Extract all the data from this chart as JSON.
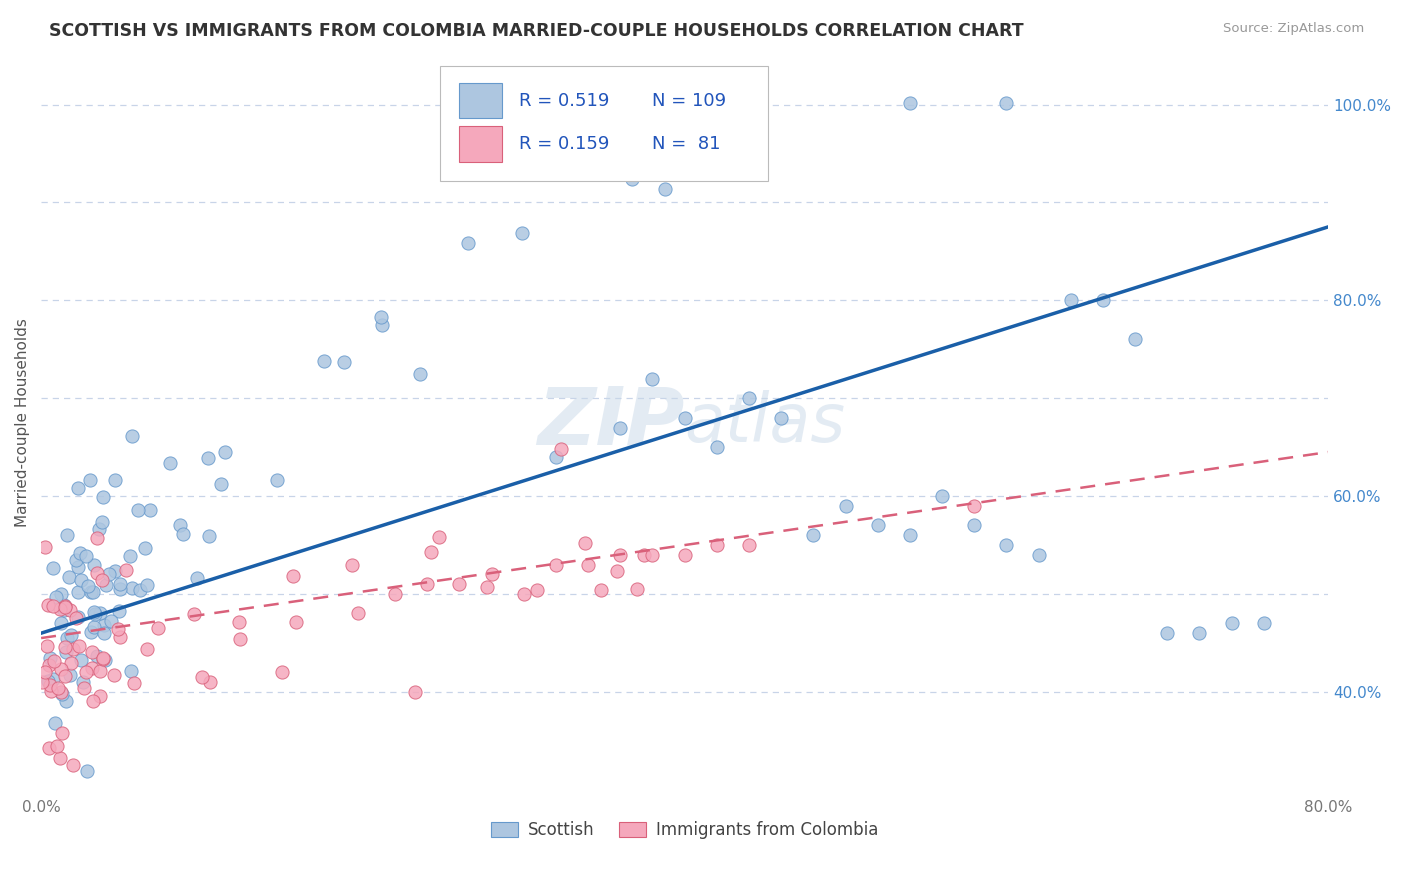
{
  "title": "SCOTTISH VS IMMIGRANTS FROM COLOMBIA MARRIED-COUPLE HOUSEHOLDS CORRELATION CHART",
  "source": "Source: ZipAtlas.com",
  "ylabel": "Married-couple Households",
  "x_min": 0.0,
  "x_max": 0.8,
  "y_min": 0.295,
  "y_max": 1.055,
  "x_ticks": [
    0.0,
    0.1,
    0.2,
    0.3,
    0.4,
    0.5,
    0.6,
    0.7,
    0.8
  ],
  "x_tick_labels": [
    "0.0%",
    "",
    "",
    "",
    "",
    "",
    "",
    "",
    "80.0%"
  ],
  "y_right_positions": [
    0.4,
    0.5,
    0.6,
    0.7,
    0.8,
    0.9,
    1.0
  ],
  "y_right_labels": [
    "40.0%",
    "",
    "60.0%",
    "",
    "80.0%",
    "",
    "100.0%"
  ],
  "legend_labels": [
    "Scottish",
    "Immigrants from Colombia"
  ],
  "blue_R": 0.519,
  "blue_N": 109,
  "pink_R": 0.159,
  "pink_N": 81,
  "blue_color": "#adc6e0",
  "pink_color": "#f5a8bc",
  "blue_edge_color": "#6699cc",
  "pink_edge_color": "#d9607a",
  "blue_line_color": "#1a5fa8",
  "pink_line_color": "#d9607a",
  "grid_color": "#c8d4e8",
  "background_color": "#ffffff",
  "blue_line_y0": 0.46,
  "blue_line_y1": 0.875,
  "pink_line_y0": 0.455,
  "pink_line_y1": 0.645,
  "watermark_color": "#c8d8e8",
  "watermark_alpha": 0.5,
  "title_color": "#333333",
  "source_color": "#999999",
  "ylabel_color": "#555555",
  "tick_label_color": "#777777",
  "right_tick_color": "#4488cc",
  "legend_R_color": "#2255bb",
  "legend_N_color": "#2255bb"
}
